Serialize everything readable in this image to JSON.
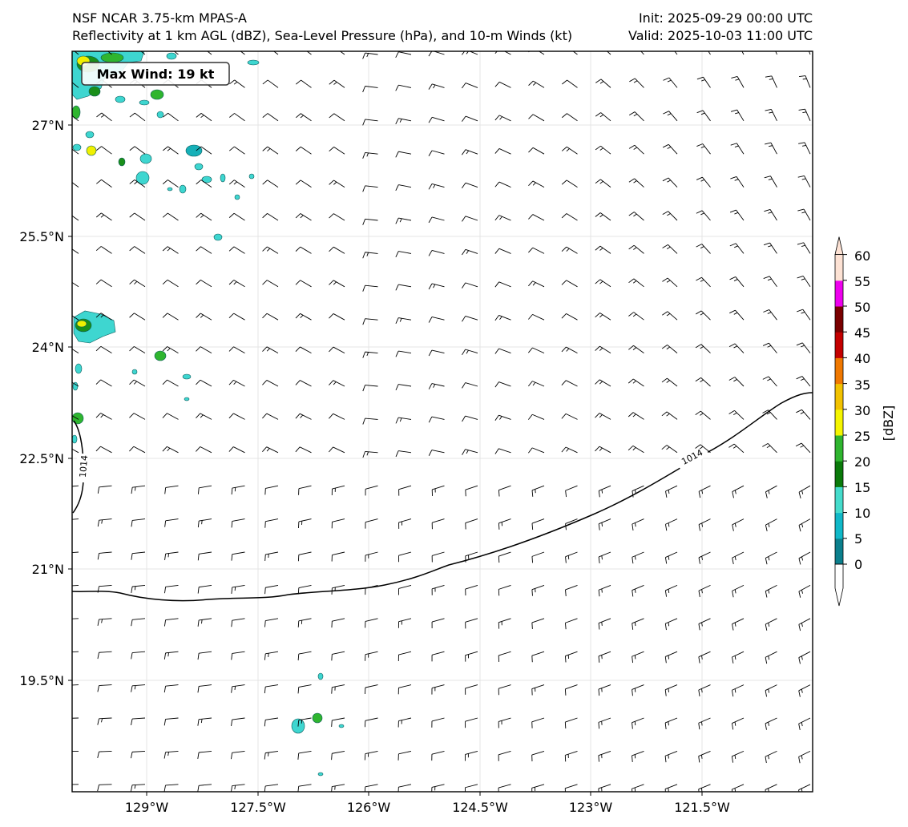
{
  "titles": {
    "left_line1": "NSF NCAR 3.75-km MPAS-A",
    "left_line2": "Reflectivity at 1 km AGL (dBZ), Sea-Level Pressure (hPa), and 10-m Winds (kt)",
    "right_line1": "Init: 2025-09-29 00:00 UTC",
    "right_line2": "Valid: 2025-10-03 11:00 UTC"
  },
  "max_wind_label": "Max Wind: 19 kt",
  "axes": {
    "lon_labels": [
      "129°W",
      "127.5°W",
      "126°W",
      "124.5°W",
      "123°W",
      "121.5°W"
    ],
    "lat_labels": [
      "27°N",
      "25.5°N",
      "24°N",
      "22.5°N",
      "21°N",
      "19.5°N"
    ]
  },
  "isobar_labels": [
    "1014",
    "1014"
  ],
  "colorbar": {
    "label": "[dBZ]",
    "ticks": [
      "0",
      "5",
      "10",
      "15",
      "20",
      "25",
      "30",
      "35",
      "40",
      "45",
      "50",
      "55",
      "60"
    ],
    "colors": [
      "#0b7f8c",
      "#10b8c8",
      "#45dccc",
      "#0a7a0a",
      "#2fb52f",
      "#f5f500",
      "#f2c200",
      "#f07800",
      "#c40000",
      "#7a0000",
      "#ee00ee",
      "#fde2d4"
    ]
  },
  "colors": {
    "cyan": "#3ed6d0",
    "teal": "#16b0b8",
    "green": "#1a8f1a",
    "yellow": "#f0f000",
    "line": "#000000"
  }
}
